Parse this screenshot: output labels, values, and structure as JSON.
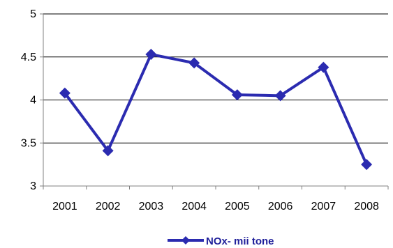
{
  "chart_data": {
    "type": "line",
    "title": "",
    "xlabel": "",
    "ylabel": "",
    "categories": [
      "2001",
      "2002",
      "2003",
      "2004",
      "2005",
      "2006",
      "2007",
      "2008"
    ],
    "series": [
      {
        "name": "NOx- mii tone",
        "values": [
          4.08,
          3.41,
          4.53,
          4.43,
          4.06,
          4.05,
          4.38,
          3.25
        ],
        "color": "#2B2BB0",
        "marker": "diamond"
      }
    ],
    "ylim": [
      3,
      5
    ],
    "yticks": [
      3,
      3.5,
      4,
      4.5,
      5
    ],
    "ytick_labels": [
      "3",
      "3.5",
      "4",
      "4.5",
      "5"
    ],
    "grid": true,
    "legend": "bottom"
  }
}
